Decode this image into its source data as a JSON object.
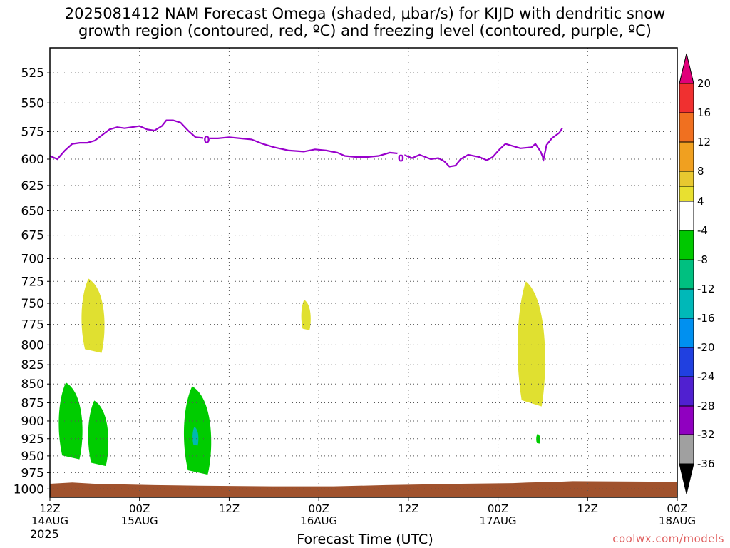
{
  "header": {
    "title_line1": "2025081412 NAM Forecast Omega (shaded, μbar/s) for KIJD with dendritic snow",
    "title_line2": "growth region (contoured, red, ºC) and freezing level (contoured, purple, ºC)"
  },
  "footer": {
    "credit": "coolwx.com/models",
    "year": "2025"
  },
  "chart_data": {
    "type": "heatmap",
    "title": "2025081412 NAM Forecast Omega (shaded, μbar/s) for KIJD with dendritic snow growth region (contoured, red, ºC) and freezing level (contoured, purple, ºC)",
    "xlabel": "Forecast Time (UTC)",
    "ylabel": "",
    "x_ticks": [
      {
        "hour": 0,
        "label": "12Z",
        "date": "14AUG"
      },
      {
        "hour": 12,
        "label": "00Z",
        "date": "15AUG"
      },
      {
        "hour": 24,
        "label": "12Z",
        "date": ""
      },
      {
        "hour": 36,
        "label": "00Z",
        "date": "16AUG"
      },
      {
        "hour": 48,
        "label": "12Z",
        "date": ""
      },
      {
        "hour": 60,
        "label": "00Z",
        "date": "17AUG"
      },
      {
        "hour": 72,
        "label": "12Z",
        "date": ""
      },
      {
        "hour": 84,
        "label": "00Z",
        "date": "18AUG"
      }
    ],
    "xlim": [
      0,
      84
    ],
    "y_ticks": [
      525,
      550,
      575,
      600,
      625,
      650,
      675,
      700,
      725,
      750,
      775,
      800,
      825,
      850,
      875,
      900,
      925,
      950,
      975,
      1000
    ],
    "ylim": [
      505,
      1013
    ],
    "y_scale": "log",
    "grid": true,
    "colorbar": {
      "labels": [
        "20",
        "16",
        "12",
        "8",
        "4",
        "-4",
        "-8",
        "-12",
        "-16",
        "-20",
        "-24",
        "-28",
        "-32",
        "-36"
      ],
      "colors": [
        "#e0007a",
        "#f03030",
        "#f07020",
        "#f0a020",
        "#e8c830",
        "#e8e030",
        "#ffffff",
        "#00c800",
        "#00c080",
        "#00b8b8",
        "#0090f0",
        "#2040e0",
        "#5020d0",
        "#9000c0",
        "#a0a0a0",
        "#000000"
      ]
    },
    "freezing_level": {
      "color": "#9900cc",
      "contour_label": "0",
      "label_positions": [
        {
          "hour": 21,
          "p": 582
        },
        {
          "hour": 47,
          "p": 599
        }
      ],
      "points": [
        [
          0,
          597
        ],
        [
          1,
          600
        ],
        [
          2,
          592
        ],
        [
          3,
          586
        ],
        [
          4,
          585
        ],
        [
          5,
          585
        ],
        [
          6,
          583
        ],
        [
          7,
          578
        ],
        [
          8,
          573
        ],
        [
          9,
          571
        ],
        [
          10,
          572
        ],
        [
          11,
          571
        ],
        [
          12,
          570
        ],
        [
          13,
          573
        ],
        [
          14,
          574
        ],
        [
          15,
          570
        ],
        [
          15.6,
          565
        ],
        [
          16.5,
          565
        ],
        [
          17.5,
          567
        ],
        [
          18.5,
          574
        ],
        [
          19.5,
          580
        ],
        [
          21,
          581
        ],
        [
          22.5,
          581
        ],
        [
          24,
          580
        ],
        [
          25.5,
          581
        ],
        [
          27,
          582
        ],
        [
          28.5,
          586
        ],
        [
          30,
          589
        ],
        [
          32,
          592
        ],
        [
          34,
          593
        ],
        [
          35.5,
          591
        ],
        [
          37,
          592
        ],
        [
          38.5,
          594
        ],
        [
          39.5,
          597
        ],
        [
          41,
          598
        ],
        [
          42.5,
          598
        ],
        [
          44,
          597
        ],
        [
          45.5,
          594
        ],
        [
          47,
          595
        ],
        [
          48.5,
          599
        ],
        [
          49.5,
          596
        ],
        [
          51,
          600
        ],
        [
          52,
          599
        ],
        [
          52.8,
          602
        ],
        [
          53.5,
          607
        ],
        [
          54.3,
          606
        ],
        [
          55,
          600
        ],
        [
          56,
          596
        ],
        [
          57.5,
          598
        ],
        [
          58.5,
          601
        ],
        [
          59.3,
          598
        ],
        [
          60.2,
          591
        ],
        [
          61,
          586
        ],
        [
          62,
          588
        ],
        [
          63,
          590
        ],
        [
          64.5,
          589
        ],
        [
          65,
          586
        ],
        [
          65.7,
          593
        ],
        [
          66.1,
          600
        ],
        [
          66.5,
          587
        ],
        [
          67.2,
          581
        ],
        [
          68.2,
          576
        ],
        [
          68.6,
          572
        ]
      ]
    },
    "omega_regions": [
      {
        "value": "-4 to -8",
        "color": "#00cc00",
        "center_hour": 2.8,
        "p_range": [
          848,
          955
        ]
      },
      {
        "value": "-4 to -8",
        "color": "#00cc00",
        "center_hour": 6.5,
        "p_range": [
          872,
          965
        ]
      },
      {
        "value": "-4 to -8",
        "color": "#00cc00",
        "center_hour": 19.8,
        "p_range": [
          853,
          978
        ]
      },
      {
        "value": "-8 to -12",
        "color": "#00b8b0",
        "center_hour": 19.5,
        "p_range": [
          908,
          935
        ]
      },
      {
        "value": "4 to 8",
        "color": "#e0e030",
        "center_hour": 5.8,
        "p_range": [
          722,
          810
        ]
      },
      {
        "value": "4 to 8",
        "color": "#e0e030",
        "center_hour": 34.3,
        "p_range": [
          746,
          782
        ]
      },
      {
        "value": "4 to 8",
        "color": "#e0e030",
        "center_hour": 64.5,
        "p_range": [
          725,
          880
        ]
      },
      {
        "value": "-4 to -8",
        "color": "#00cc00",
        "center_hour": 65.4,
        "p_range": [
          918,
          932
        ]
      }
    ],
    "terrain": {
      "color": "#a0522d",
      "top_p": 993
    }
  }
}
